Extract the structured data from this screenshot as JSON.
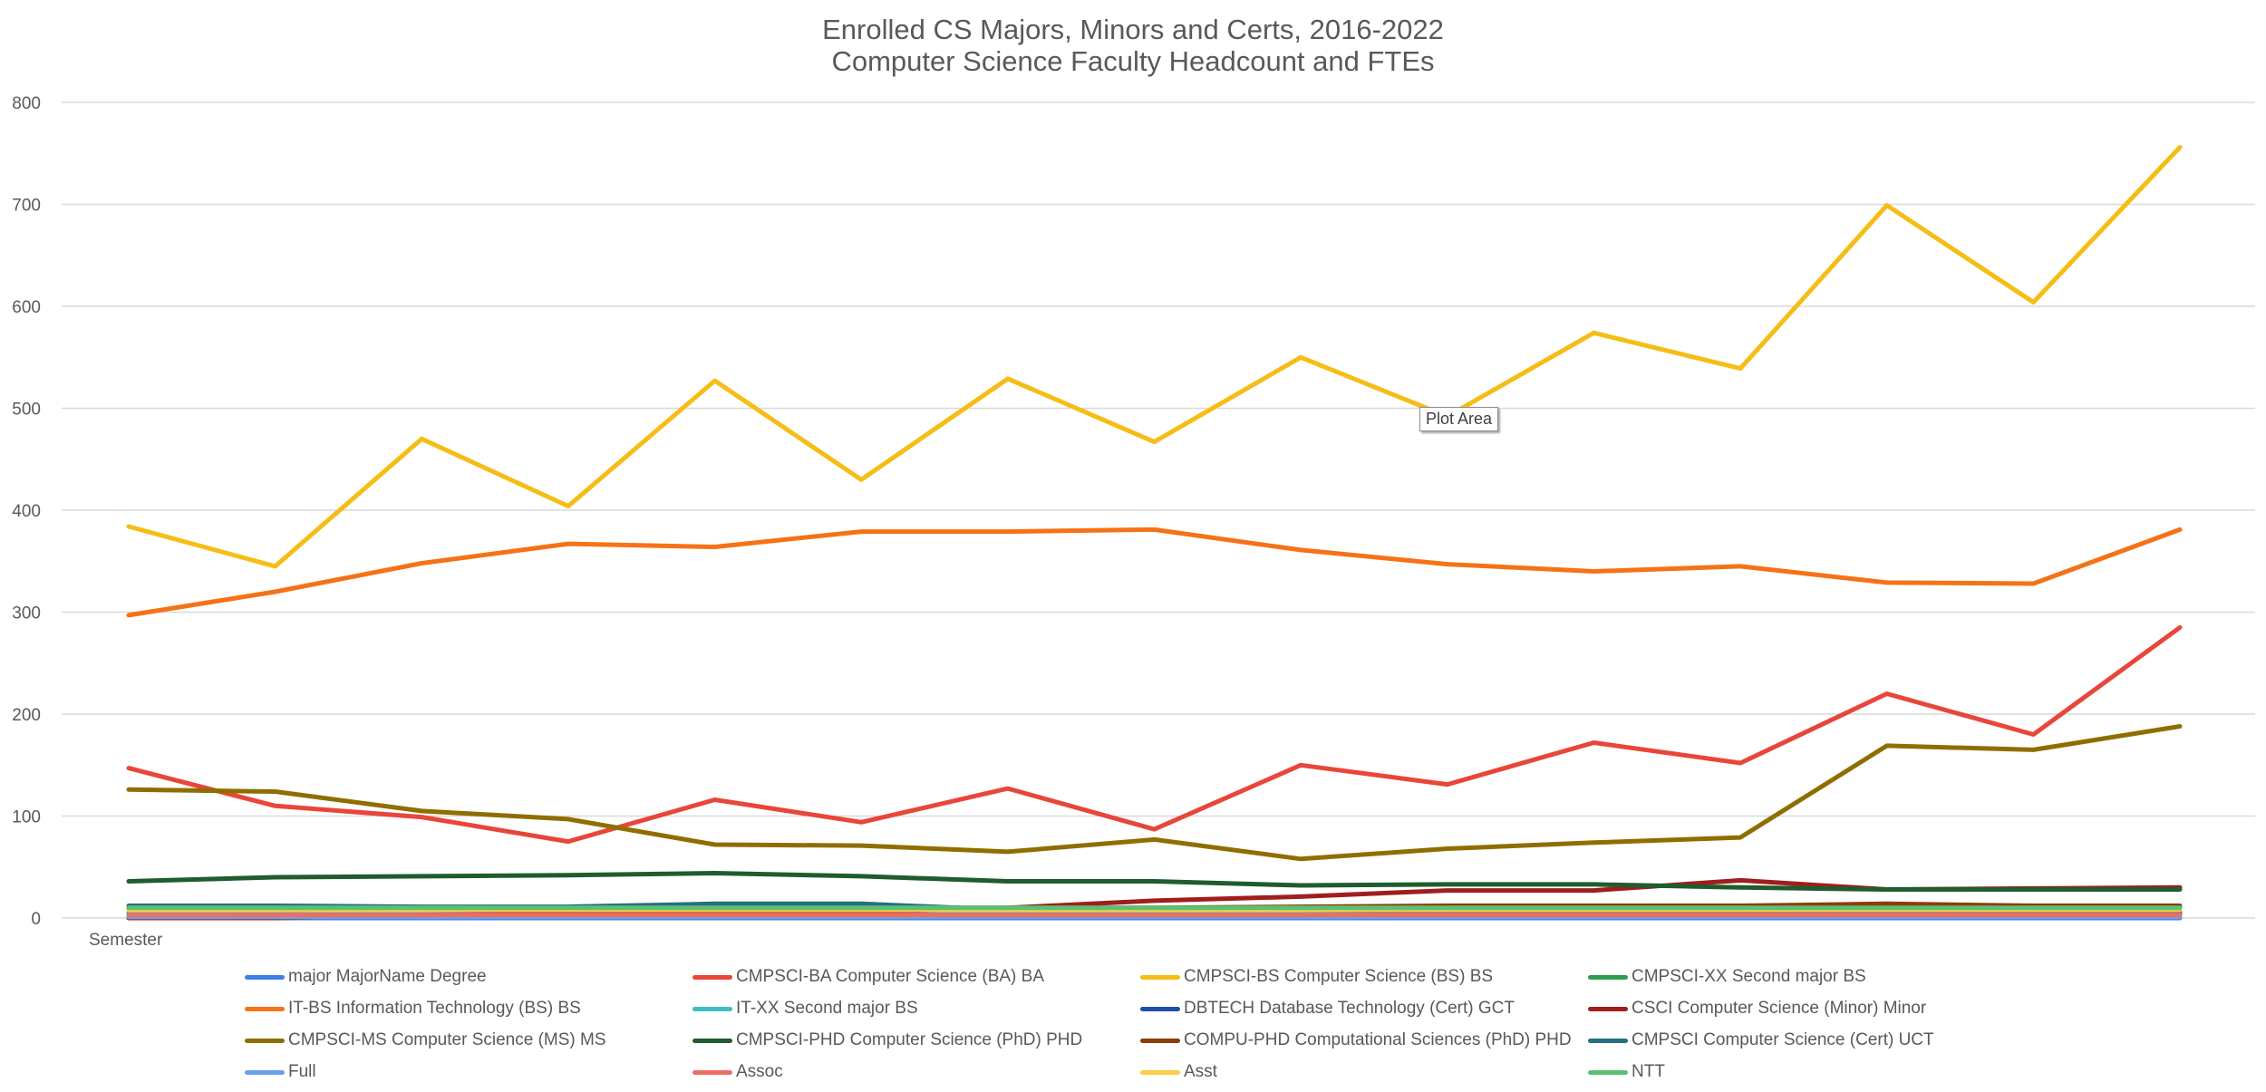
{
  "chart_data": {
    "type": "line",
    "title": "Enrolled CS Majors, Minors and Certs, 2016-2022",
    "subtitle": "Computer Science Faculty Headcount and FTEs",
    "xlabel": "Semester",
    "ylabel": "",
    "ylim": [
      0,
      800
    ],
    "yticks": [
      0,
      100,
      200,
      300,
      400,
      500,
      600,
      700,
      800
    ],
    "grid": true,
    "legend_position": "bottom",
    "num_points": 15,
    "tooltip": "Plot Area",
    "series": [
      {
        "name": "major MajorName Degree",
        "color": "#3f7fe6",
        "values": [
          0,
          0,
          0,
          0,
          0,
          0,
          0,
          0,
          0,
          0,
          0,
          0,
          0,
          0,
          0
        ]
      },
      {
        "name": "CMPSCI-BA Computer Science (BA) BA",
        "color": "#e8463a",
        "values": [
          147,
          110,
          99,
          75,
          116,
          94,
          127,
          87,
          150,
          131,
          172,
          152,
          220,
          180,
          285
        ]
      },
      {
        "name": "CMPSCI-BS Computer Science (BS) BS",
        "color": "#f6bd16",
        "values": [
          384,
          345,
          470,
          404,
          527,
          430,
          529,
          467,
          550,
          492,
          574,
          539,
          699,
          604,
          756
        ]
      },
      {
        "name": "CMPSCI-XX Second major BS",
        "color": "#2e9d4f",
        "values": [
          5,
          5,
          5,
          5,
          5,
          5,
          5,
          5,
          5,
          5,
          5,
          5,
          5,
          5,
          5
        ]
      },
      {
        "name": "IT-BS Information Technology (BS) BS",
        "color": "#f57217",
        "values": [
          297,
          320,
          348,
          367,
          364,
          379,
          379,
          381,
          361,
          347,
          340,
          345,
          329,
          328,
          381
        ]
      },
      {
        "name": "IT-XX Second major BS",
        "color": "#40bcc4",
        "values": [
          4,
          4,
          4,
          4,
          4,
          4,
          4,
          4,
          4,
          4,
          4,
          4,
          4,
          4,
          4
        ]
      },
      {
        "name": "DBTECH Database Technology (Cert) GCT",
        "color": "#1e4fa8",
        "values": [
          1,
          1,
          1,
          1,
          1,
          1,
          1,
          1,
          1,
          1,
          1,
          1,
          1,
          1,
          1
        ]
      },
      {
        "name": "CSCI Computer Science (Minor) Minor",
        "color": "#a01e1e",
        "values": [
          0,
          0,
          3,
          4,
          5,
          6,
          10,
          17,
          21,
          27,
          27,
          37,
          28,
          29,
          30
        ]
      },
      {
        "name": "CMPSCI-MS Computer Science (MS) MS",
        "color": "#8f6e00",
        "values": [
          126,
          124,
          105,
          97,
          72,
          71,
          65,
          77,
          58,
          68,
          74,
          79,
          169,
          165,
          188
        ]
      },
      {
        "name": "CMPSCI-PHD Computer Science (PhD) PHD",
        "color": "#1f5c2e",
        "values": [
          36,
          40,
          41,
          42,
          44,
          41,
          36,
          36,
          32,
          33,
          33,
          30,
          28,
          28,
          28
        ]
      },
      {
        "name": "COMPU-PHD Computational Sciences (PhD) PHD",
        "color": "#8f3a09",
        "values": [
          10,
          10,
          10,
          10,
          10,
          10,
          10,
          10,
          11,
          12,
          12,
          12,
          14,
          12,
          12
        ]
      },
      {
        "name": "CMPSCI Computer Science (Cert) UCT",
        "color": "#276e83",
        "values": [
          12,
          12,
          11,
          11,
          14,
          14,
          8,
          8,
          8,
          7,
          7,
          6,
          6,
          6,
          6
        ]
      },
      {
        "name": "Full",
        "color": "#6aa0ec",
        "values": [
          1,
          1,
          1,
          1,
          1,
          1,
          1,
          1,
          1,
          1,
          1,
          1,
          1,
          1,
          1
        ]
      },
      {
        "name": "Assoc",
        "color": "#ee6d63",
        "values": [
          3,
          3,
          3,
          3,
          3,
          3,
          3,
          3,
          3,
          3,
          3,
          3,
          3,
          3,
          3
        ]
      },
      {
        "name": "Asst",
        "color": "#f8cf46",
        "values": [
          8,
          8,
          8,
          8,
          8,
          8,
          8,
          8,
          8,
          8,
          8,
          8,
          8,
          8,
          8
        ]
      },
      {
        "name": "NTT",
        "color": "#5cc073",
        "values": [
          10,
          10,
          10,
          10,
          10,
          10,
          10,
          10,
          10,
          10,
          10,
          10,
          10,
          10,
          10
        ]
      }
    ]
  }
}
